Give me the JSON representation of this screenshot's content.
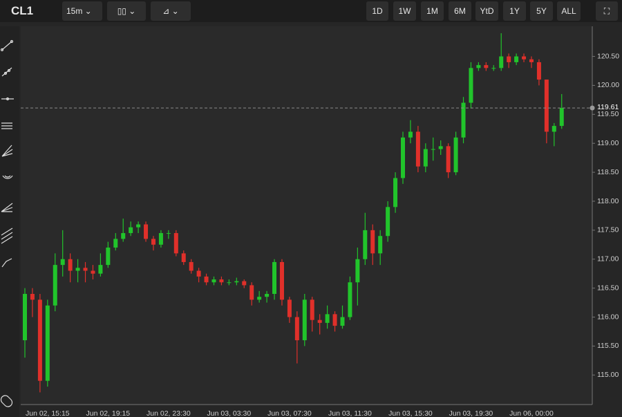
{
  "toolbar": {
    "symbol": "CL1",
    "interval": "15m",
    "ranges": [
      "1D",
      "1W",
      "1M",
      "6M",
      "YtD",
      "1Y",
      "5Y",
      "ALL"
    ]
  },
  "chart_data": {
    "type": "candlestick",
    "up_color": "#21c42b",
    "down_color": "#e0302a",
    "last_price": 119.61,
    "categories": [
      null,
      null,
      null,
      "Jun 02, 15:15",
      null,
      null,
      null,
      null,
      null,
      null,
      null,
      "Jun 02, 19:15",
      null,
      null,
      null,
      null,
      null,
      null,
      null,
      "Jun 02, 23:30",
      null,
      null,
      null,
      null,
      null,
      null,
      null,
      "Jun 03, 03:30",
      null,
      null,
      null,
      null,
      null,
      null,
      null,
      "Jun 03, 07:30",
      null,
      null,
      null,
      null,
      null,
      null,
      null,
      "Jun 03, 11:30",
      null,
      null,
      null,
      null,
      null,
      null,
      null,
      "Jun 03, 15:30",
      null,
      null,
      null,
      null,
      null,
      null,
      null,
      "Jun 03, 19:30",
      null,
      null,
      null,
      null,
      null,
      null,
      null,
      "Jun 06, 00:00",
      null,
      null,
      null,
      null
    ],
    "open": [
      115.6,
      116.4,
      116.3,
      114.9,
      116.2,
      116.9,
      117.0,
      116.8,
      116.85,
      116.8,
      116.75,
      116.9,
      117.2,
      117.35,
      117.45,
      117.55,
      117.6,
      117.35,
      117.25,
      117.45,
      117.45,
      117.1,
      116.95,
      116.8,
      116.7,
      116.6,
      116.65,
      116.6,
      116.6,
      116.62,
      116.55,
      116.3,
      116.35,
      116.4,
      116.95,
      116.3,
      116.0,
      115.6,
      116.3,
      115.95,
      115.9,
      116.05,
      115.85,
      116.0,
      116.6,
      117.0,
      117.5,
      117.1,
      117.4,
      117.9,
      118.4,
      119.1,
      119.2,
      118.6,
      118.9,
      118.9,
      118.95,
      118.5,
      119.1,
      119.7,
      120.3,
      120.35,
      120.3,
      120.3,
      120.5,
      120.4,
      120.5,
      120.45,
      120.4,
      120.1,
      119.2,
      119.3
    ],
    "high": [
      116.5,
      116.5,
      116.4,
      116.3,
      117.1,
      117.5,
      117.1,
      117.0,
      116.95,
      116.9,
      117.1,
      117.3,
      117.45,
      117.7,
      117.65,
      117.65,
      117.65,
      117.4,
      117.5,
      117.5,
      117.5,
      117.15,
      117.0,
      116.85,
      116.75,
      116.7,
      116.7,
      116.65,
      116.68,
      116.65,
      116.6,
      116.45,
      116.45,
      117.0,
      117.0,
      116.35,
      116.1,
      116.4,
      116.35,
      116.05,
      116.2,
      116.1,
      116.2,
      116.7,
      117.2,
      117.8,
      117.6,
      117.5,
      118.0,
      118.5,
      119.2,
      119.4,
      119.3,
      119.0,
      119.1,
      119.05,
      119.0,
      119.2,
      119.8,
      120.4,
      120.4,
      120.4,
      120.35,
      120.9,
      120.55,
      120.55,
      120.55,
      120.5,
      120.45,
      120.1,
      119.35,
      119.85
    ],
    "low": [
      115.3,
      116.0,
      114.7,
      114.8,
      116.1,
      116.7,
      116.6,
      116.6,
      116.6,
      116.65,
      116.7,
      116.85,
      117.15,
      117.3,
      117.4,
      117.45,
      117.3,
      117.15,
      117.2,
      117.35,
      117.05,
      116.9,
      116.75,
      116.6,
      116.55,
      116.55,
      116.55,
      116.55,
      116.55,
      116.5,
      116.2,
      116.25,
      116.25,
      116.3,
      116.2,
      115.9,
      115.2,
      115.5,
      115.75,
      115.7,
      115.8,
      115.75,
      115.8,
      115.95,
      116.2,
      116.9,
      116.9,
      116.9,
      117.3,
      117.8,
      118.3,
      119.0,
      118.5,
      118.5,
      118.7,
      118.8,
      118.4,
      118.45,
      119.0,
      119.6,
      120.25,
      120.25,
      120.25,
      120.25,
      120.3,
      120.35,
      120.4,
      120.3,
      120.0,
      119.0,
      118.95,
      119.25
    ],
    "close": [
      116.4,
      116.3,
      114.9,
      116.2,
      116.9,
      117.0,
      116.8,
      116.85,
      116.8,
      116.75,
      116.9,
      117.2,
      117.35,
      117.45,
      117.55,
      117.6,
      117.35,
      117.25,
      117.45,
      117.45,
      117.1,
      116.95,
      116.8,
      116.7,
      116.6,
      116.65,
      116.6,
      116.6,
      116.62,
      116.55,
      116.3,
      116.35,
      116.4,
      116.95,
      116.3,
      116.0,
      115.6,
      116.3,
      115.95,
      115.9,
      116.05,
      115.85,
      116.0,
      116.6,
      117.0,
      117.5,
      117.1,
      117.4,
      117.9,
      118.4,
      119.1,
      119.2,
      118.6,
      118.9,
      118.9,
      118.95,
      118.5,
      119.1,
      119.7,
      120.3,
      120.35,
      120.3,
      120.3,
      120.5,
      120.4,
      120.5,
      120.45,
      120.4,
      120.1,
      119.2,
      119.3,
      119.61
    ],
    "ylim": [
      114.49,
      121.02
    ],
    "yticks": [
      {
        "value": 115,
        "label": "115.00"
      },
      {
        "value": 115.5,
        "label": "115.50"
      },
      {
        "value": 116,
        "label": "116.00"
      },
      {
        "value": 116.5,
        "label": "116.50"
      },
      {
        "value": 117,
        "label": "117.00"
      },
      {
        "value": 117.5,
        "label": "117.50"
      },
      {
        "value": 118,
        "label": "118.00"
      },
      {
        "value": 118.5,
        "label": "118.50"
      },
      {
        "value": 119,
        "label": "119.00"
      },
      {
        "value": 119.5,
        "label": "119.50"
      },
      {
        "value": 120,
        "label": "120.00"
      },
      {
        "value": 120.5,
        "label": "120.50"
      }
    ]
  }
}
